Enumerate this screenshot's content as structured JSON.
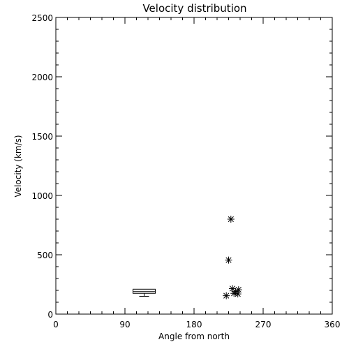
{
  "chart_data": {
    "type": "scatter",
    "title": "Velocity distribution",
    "xlabel": "Angle from north",
    "ylabel": "Velocity (km/s)",
    "xlim": [
      0,
      360
    ],
    "ylim": [
      0,
      2500
    ],
    "xticks": [
      0,
      90,
      180,
      270,
      360
    ],
    "yticks": [
      0,
      500,
      1000,
      1500,
      2000,
      2500
    ],
    "grid": false,
    "points": [
      {
        "x": 228,
        "y": 800
      },
      {
        "x": 225,
        "y": 455
      },
      {
        "x": 230,
        "y": 215
      },
      {
        "x": 238,
        "y": 205
      },
      {
        "x": 234,
        "y": 190
      },
      {
        "x": 232,
        "y": 175
      },
      {
        "x": 237,
        "y": 170
      },
      {
        "x": 222,
        "y": 155
      }
    ],
    "boxplot": {
      "x": 115,
      "whisker_low": 150,
      "q1": 175,
      "median": 190,
      "q3": 210,
      "whisker_high": 210
    }
  }
}
